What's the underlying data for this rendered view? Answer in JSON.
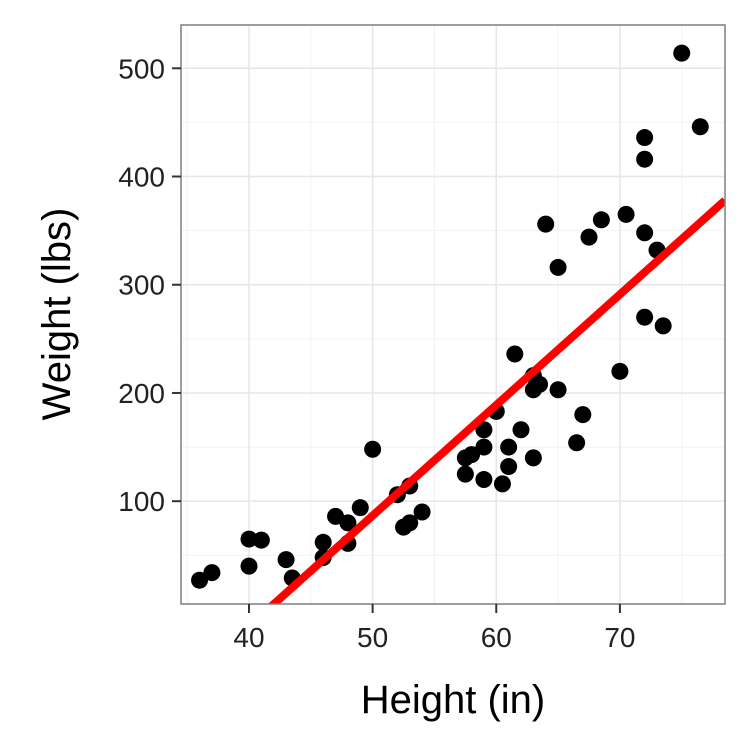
{
  "chart_data": {
    "type": "scatter",
    "xlabel": "Height (in)",
    "ylabel": "Weight (lbs)",
    "xlim": [
      34.5,
      78.5
    ],
    "ylim": [
      5,
      540
    ],
    "x_ticks": [
      40,
      50,
      60,
      70
    ],
    "y_ticks": [
      100,
      200,
      300,
      400,
      500
    ],
    "x_minor": [
      35,
      45,
      55,
      65,
      75
    ],
    "y_minor": [
      50,
      150,
      250,
      350,
      450
    ],
    "grid": true,
    "point_color": "#000000",
    "fit_color": "#ff0000",
    "series": [
      {
        "points": [
          {
            "x": 36,
            "y": 27
          },
          {
            "x": 37,
            "y": 34
          },
          {
            "x": 40,
            "y": 65
          },
          {
            "x": 41,
            "y": 64
          },
          {
            "x": 40,
            "y": 40
          },
          {
            "x": 43,
            "y": 46
          },
          {
            "x": 43.5,
            "y": 29
          },
          {
            "x": 46,
            "y": 48
          },
          {
            "x": 46,
            "y": 62
          },
          {
            "x": 47,
            "y": 86
          },
          {
            "x": 48,
            "y": 80
          },
          {
            "x": 48,
            "y": 61
          },
          {
            "x": 49,
            "y": 94
          },
          {
            "x": 50,
            "y": 148
          },
          {
            "x": 52,
            "y": 106
          },
          {
            "x": 52.5,
            "y": 76
          },
          {
            "x": 53,
            "y": 80
          },
          {
            "x": 53,
            "y": 114
          },
          {
            "x": 54,
            "y": 90
          },
          {
            "x": 57.5,
            "y": 140
          },
          {
            "x": 57.5,
            "y": 125
          },
          {
            "x": 58,
            "y": 143
          },
          {
            "x": 59,
            "y": 166
          },
          {
            "x": 59,
            "y": 150
          },
          {
            "x": 59,
            "y": 120
          },
          {
            "x": 60,
            "y": 183
          },
          {
            "x": 60.5,
            "y": 116
          },
          {
            "x": 61,
            "y": 150
          },
          {
            "x": 61,
            "y": 132
          },
          {
            "x": 61.5,
            "y": 236
          },
          {
            "x": 62,
            "y": 166
          },
          {
            "x": 63,
            "y": 140
          },
          {
            "x": 63,
            "y": 216
          },
          {
            "x": 63,
            "y": 203
          },
          {
            "x": 63.5,
            "y": 208
          },
          {
            "x": 64,
            "y": 356
          },
          {
            "x": 65,
            "y": 316
          },
          {
            "x": 65,
            "y": 203
          },
          {
            "x": 66.5,
            "y": 154
          },
          {
            "x": 67,
            "y": 180
          },
          {
            "x": 67.5,
            "y": 344
          },
          {
            "x": 68.5,
            "y": 360
          },
          {
            "x": 70,
            "y": 220
          },
          {
            "x": 70.5,
            "y": 365
          },
          {
            "x": 72,
            "y": 436
          },
          {
            "x": 72,
            "y": 416
          },
          {
            "x": 72,
            "y": 348
          },
          {
            "x": 72,
            "y": 270
          },
          {
            "x": 73,
            "y": 332
          },
          {
            "x": 73.5,
            "y": 262
          },
          {
            "x": 75,
            "y": 514
          },
          {
            "x": 76.5,
            "y": 446
          }
        ]
      }
    ],
    "fit_line": {
      "x": [
        38,
        78.5
      ],
      "y": [
        -36,
        378
      ]
    }
  }
}
